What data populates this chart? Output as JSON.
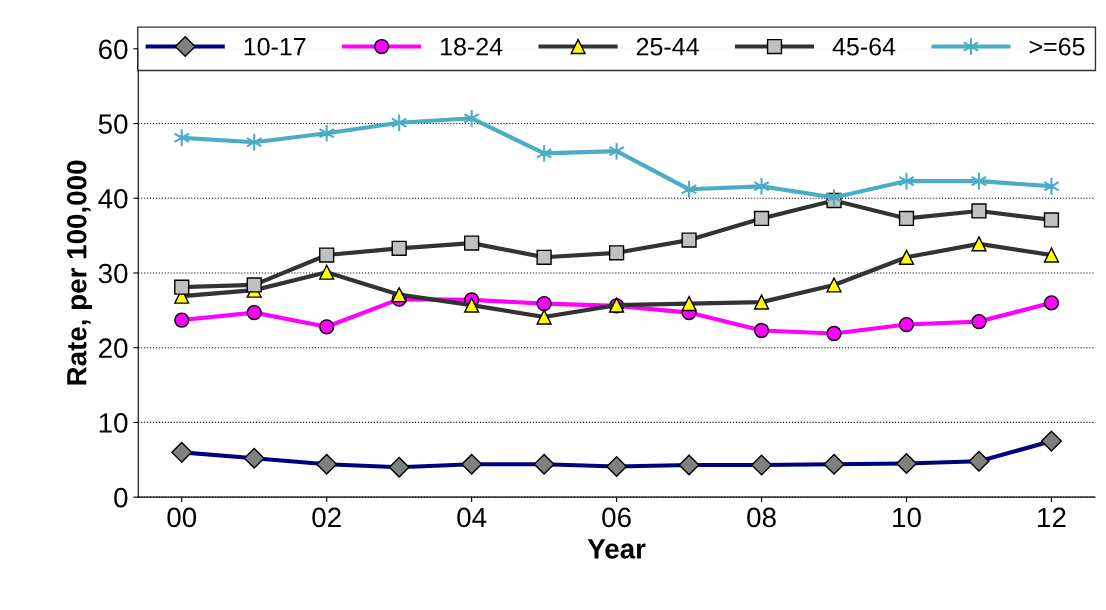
{
  "chart_data": {
    "type": "line",
    "xlabel": "Year",
    "ylabel": "Rate, per 100,000",
    "categories": [
      "00",
      null,
      "02",
      null,
      "04",
      null,
      "06",
      null,
      "08",
      null,
      "10",
      null,
      "12"
    ],
    "ylim": [
      0,
      60
    ],
    "yticks": [
      0,
      10,
      20,
      30,
      40,
      50,
      60
    ],
    "grid": "y",
    "legend": "top",
    "line_style": "solid",
    "series": [
      {
        "name": "10-17",
        "color": "#000080",
        "marker": "diamond",
        "values": [
          6.0,
          5.2,
          4.4,
          4.0,
          4.4,
          4.4,
          4.1,
          4.3,
          4.3,
          4.4,
          4.5,
          4.8,
          7.5
        ]
      },
      {
        "name": "18-24",
        "color": "#ff00ff",
        "marker": "circle",
        "values": [
          23.7,
          24.7,
          22.8,
          26.5,
          26.4,
          25.9,
          25.6,
          24.7,
          22.3,
          21.9,
          23.1,
          23.5,
          26.0
        ]
      },
      {
        "name": "25-44",
        "color": "#333333",
        "marker": "triangle",
        "values": [
          26.9,
          27.7,
          30.1,
          27.1,
          25.7,
          24.1,
          25.7,
          25.9,
          26.1,
          28.4,
          32.1,
          33.9,
          32.4
        ]
      },
      {
        "name": "45-64",
        "color": "#333333",
        "marker": "square",
        "values": [
          28.1,
          28.4,
          32.4,
          33.3,
          34.0,
          32.1,
          32.7,
          34.4,
          37.3,
          39.7,
          37.3,
          38.3,
          37.1
        ]
      },
      {
        "name": ">=65",
        "color": "#4bacc6",
        "marker": "cross",
        "values": [
          48.1,
          47.5,
          48.7,
          50.1,
          50.7,
          46.0,
          46.3,
          41.2,
          41.6,
          40.1,
          42.3,
          42.3,
          41.6
        ]
      }
    ]
  }
}
